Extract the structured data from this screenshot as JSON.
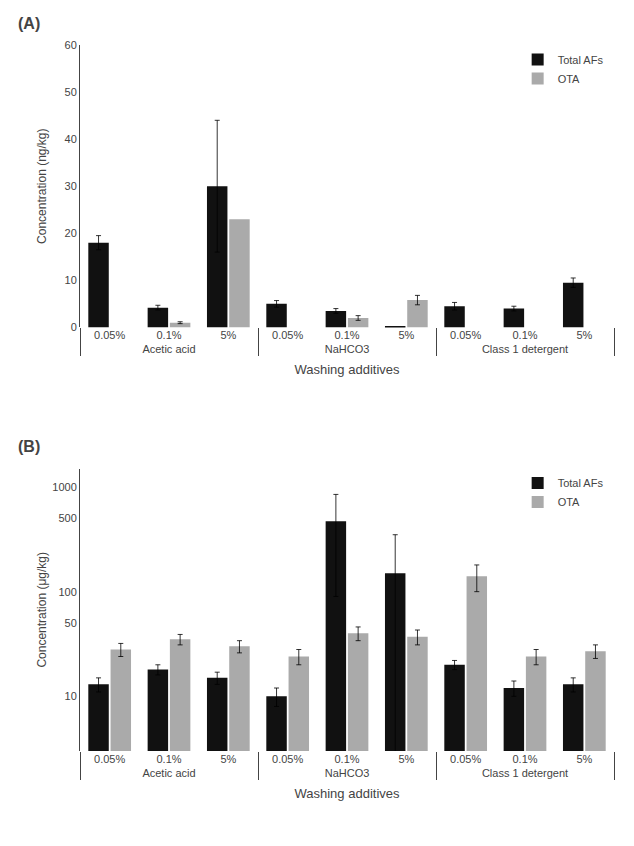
{
  "chart_data": [
    {
      "type": "bar",
      "title": "(A)",
      "xlabel": "Washing additives",
      "ylabel": "Concentration (ng/kg)",
      "categories": [
        [
          "Acetic acid",
          "0.05%"
        ],
        [
          "Acetic acid",
          "0.1%"
        ],
        [
          "Acetic acid",
          "5%"
        ],
        [
          "NaHCO3",
          "0.05%"
        ],
        [
          "NaHCO3",
          "0.1%"
        ],
        [
          "NaHCO3",
          "5%"
        ],
        [
          "Class 1 detergent",
          "0.05%"
        ],
        [
          "Class 1 detergent",
          "0.1%"
        ],
        [
          "Class 1 detergent",
          "5%"
        ]
      ],
      "series": [
        {
          "name": "Total AFs",
          "color": "#111111",
          "values": [
            18.0,
            4.2,
            30.0,
            5.0,
            3.5,
            0.3,
            4.5,
            4.0,
            9.5
          ],
          "errors": [
            1.5,
            0.5,
            14.0,
            0.7,
            0.5,
            0.0,
            0.8,
            0.5,
            1.0
          ]
        },
        {
          "name": "OTA",
          "color": "#aaaaaa",
          "values": [
            0.0,
            1.0,
            23.0,
            0.0,
            2.0,
            5.8,
            0.0,
            0.0,
            0.0
          ],
          "errors": [
            0.0,
            0.2,
            0.0,
            0.0,
            0.5,
            1.0,
            0.0,
            0.0,
            0.0
          ]
        }
      ],
      "ylim": [
        0,
        60
      ],
      "yticks": [
        0,
        10,
        20,
        30,
        40,
        50,
        60
      ],
      "grid": false,
      "legend": "upper right"
    },
    {
      "type": "bar",
      "title": "(B)",
      "xlabel": "Washing additives",
      "ylabel": "Concentration (μg/kg)",
      "categories": [
        [
          "Acetic acid",
          "0.05%"
        ],
        [
          "Acetic acid",
          "0.1%"
        ],
        [
          "Acetic acid",
          "5%"
        ],
        [
          "NaHCO3",
          "0.05%"
        ],
        [
          "NaHCO3",
          "0.1%"
        ],
        [
          "NaHCO3",
          "5%"
        ],
        [
          "Class 1 detergent",
          "0.05%"
        ],
        [
          "Class 1 detergent",
          "0.1%"
        ],
        [
          "Class 1 detergent",
          "5%"
        ]
      ],
      "series": [
        {
          "name": "Total AFs",
          "color": "#111111",
          "values": [
            13.0,
            18.0,
            15.0,
            10.0,
            470.0,
            150.0,
            20.0,
            12.0,
            13.0
          ],
          "errors": [
            2.0,
            2.0,
            2.0,
            2.0,
            380.0,
            200.0,
            2.0,
            2.0,
            2.0
          ]
        },
        {
          "name": "OTA",
          "color": "#aaaaaa",
          "values": [
            28.0,
            35.0,
            30.0,
            24.0,
            40.0,
            37.0,
            140.0,
            24.0,
            27.0
          ],
          "errors": [
            4.0,
            4.0,
            4.0,
            4.0,
            6.0,
            6.0,
            40.0,
            4.0,
            4.0
          ]
        }
      ],
      "log": "y",
      "ylim": [
        3,
        1500
      ],
      "yticks": [
        10,
        50,
        100,
        500,
        1000
      ],
      "grid": false,
      "legend": "upper right"
    }
  ]
}
